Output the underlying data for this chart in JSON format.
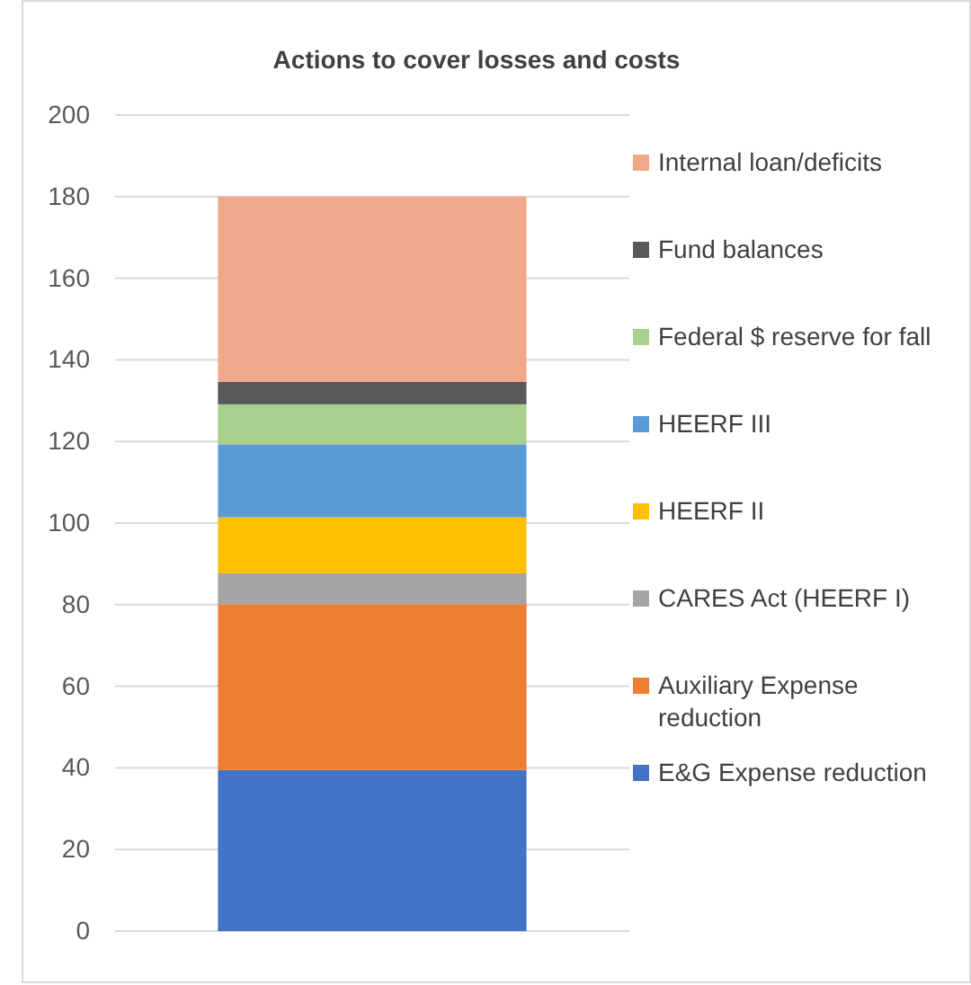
{
  "chart_data": {
    "type": "bar",
    "title": "Actions to cover losses and costs",
    "categories": [
      null
    ],
    "stacked": true,
    "series": [
      {
        "name": "E&G Expense reduction",
        "color": "#4472c4",
        "values": [
          39.5
        ]
      },
      {
        "name": "Auxiliary Expense reduction",
        "color": "#ed7d31",
        "values": [
          40.6
        ]
      },
      {
        "name": "CARES Act (HEERF I)",
        "color": "#a5a5a5",
        "values": [
          7.6
        ]
      },
      {
        "name": "HEERF II",
        "color": "#ffc000",
        "values": [
          13.7
        ]
      },
      {
        "name": "HEERF III",
        "color": "#5b9bd5",
        "values": [
          17.9
        ]
      },
      {
        "name": "Federal $ reserve for fall",
        "color": "#a9d18e",
        "values": [
          9.8
        ]
      },
      {
        "name": "Fund balances",
        "color": "#595959",
        "values": [
          5.5
        ]
      },
      {
        "name": "Internal loan/deficits",
        "color": "#f0a78a",
        "values": [
          45.4
        ]
      }
    ],
    "ylim": [
      0,
      200
    ],
    "yticks": [
      0,
      20,
      40,
      60,
      80,
      100,
      120,
      140,
      160,
      180,
      200
    ],
    "grid": "y",
    "legend": "right"
  }
}
